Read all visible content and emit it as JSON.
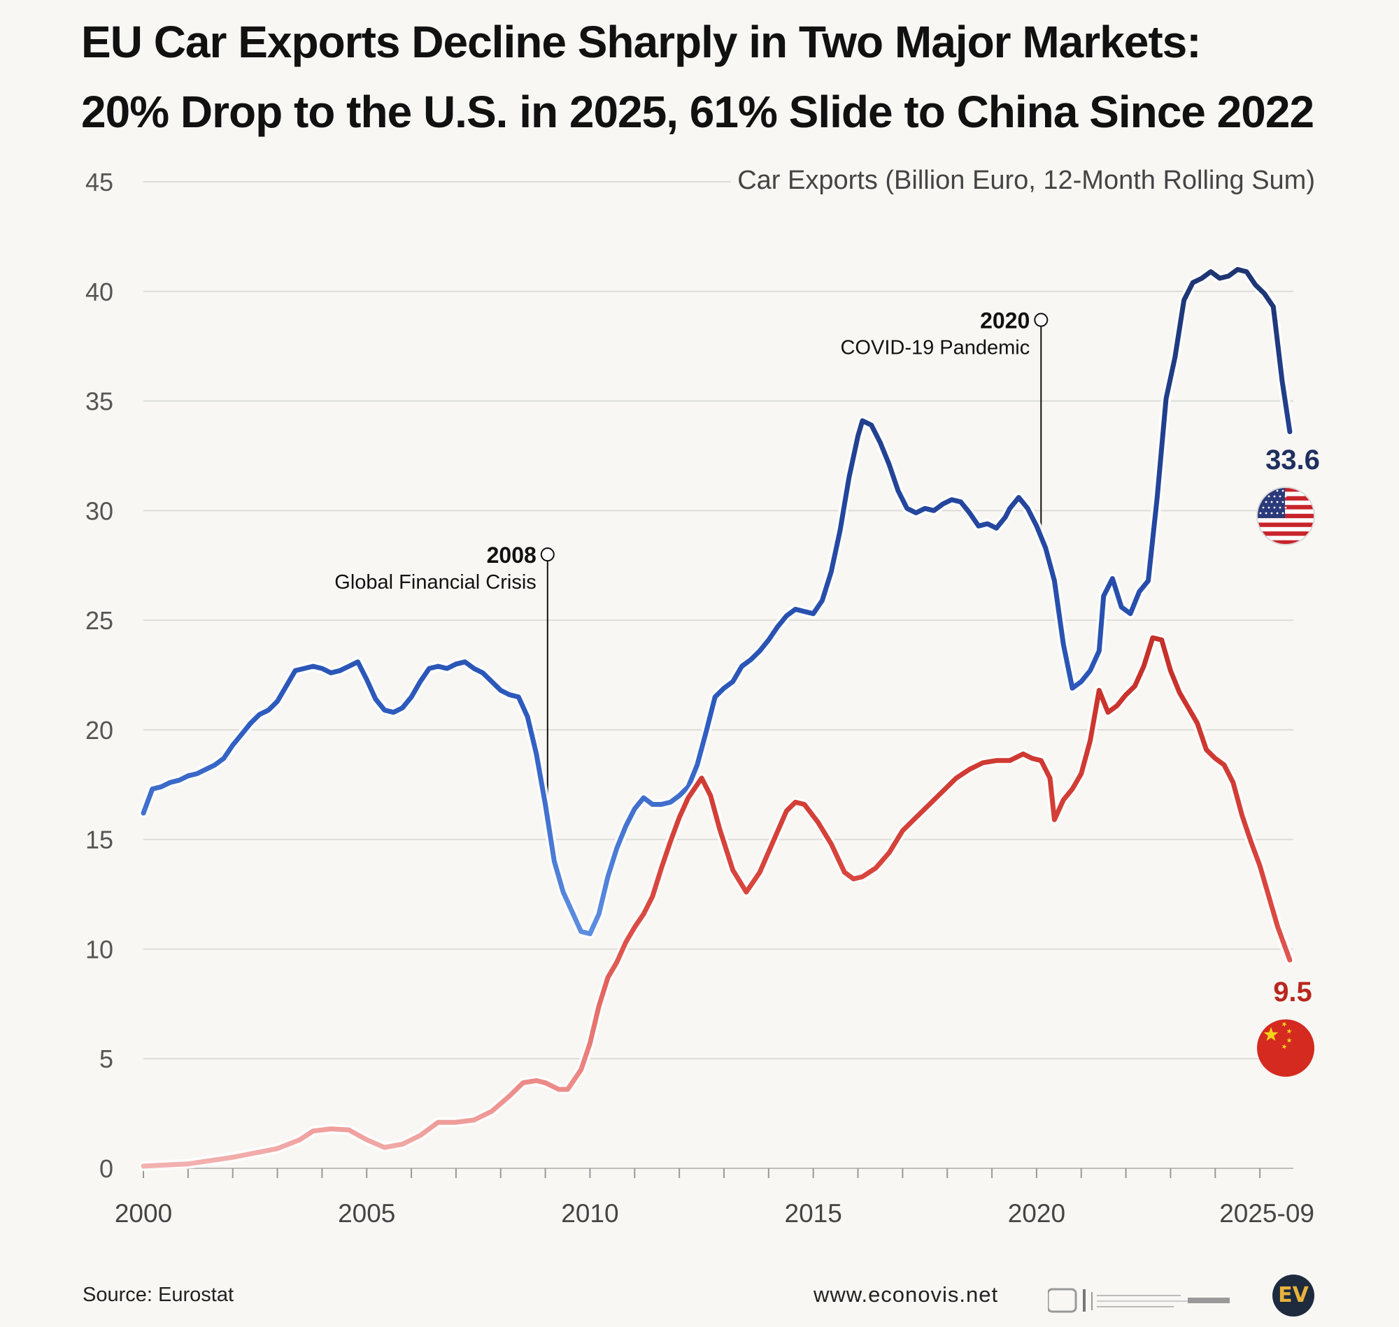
{
  "title": {
    "line1": "EU Car Exports Decline Sharply in Two Major Markets:",
    "line2": "20% Drop to the U.S. in 2025, 61% Slide to China Since 2022"
  },
  "chart_data": {
    "type": "line",
    "subtitle": "Car Exports (Billion Euro, 12-Month Rolling Sum)",
    "ylim": [
      0,
      45
    ],
    "xlim": [
      2000,
      2025.75
    ],
    "y_ticks": [
      "0",
      "5",
      "10",
      "15",
      "20",
      "25",
      "30",
      "35",
      "40",
      "45"
    ],
    "x_ticks": [
      {
        "value": 2000,
        "label": "2000"
      },
      {
        "value": 2005,
        "label": "2005"
      },
      {
        "value": 2010,
        "label": "2010"
      },
      {
        "value": 2015,
        "label": "2015"
      },
      {
        "value": 2020,
        "label": "2020"
      },
      {
        "value": 2025.67,
        "label": "2025-09"
      }
    ],
    "grid": true,
    "series": [
      {
        "name": "United States",
        "color": "#1f3f7e",
        "end_label": "33.6",
        "flag": "us-flag",
        "points": [
          [
            2000.0,
            16.2
          ],
          [
            2000.2,
            17.3
          ],
          [
            2000.4,
            17.4
          ],
          [
            2000.6,
            17.6
          ],
          [
            2000.8,
            17.7
          ],
          [
            2001.0,
            17.9
          ],
          [
            2001.2,
            18.0
          ],
          [
            2001.4,
            18.2
          ],
          [
            2001.6,
            18.4
          ],
          [
            2001.8,
            18.7
          ],
          [
            2002.0,
            19.3
          ],
          [
            2002.2,
            19.8
          ],
          [
            2002.4,
            20.3
          ],
          [
            2002.6,
            20.7
          ],
          [
            2002.8,
            20.9
          ],
          [
            2003.0,
            21.3
          ],
          [
            2003.2,
            22.0
          ],
          [
            2003.4,
            22.7
          ],
          [
            2003.6,
            22.8
          ],
          [
            2003.8,
            22.9
          ],
          [
            2004.0,
            22.8
          ],
          [
            2004.2,
            22.6
          ],
          [
            2004.4,
            22.7
          ],
          [
            2004.6,
            22.9
          ],
          [
            2004.8,
            23.1
          ],
          [
            2005.0,
            22.3
          ],
          [
            2005.2,
            21.4
          ],
          [
            2005.4,
            20.9
          ],
          [
            2005.6,
            20.8
          ],
          [
            2005.8,
            21.0
          ],
          [
            2006.0,
            21.5
          ],
          [
            2006.2,
            22.2
          ],
          [
            2006.4,
            22.8
          ],
          [
            2006.6,
            22.9
          ],
          [
            2006.8,
            22.8
          ],
          [
            2007.0,
            23.0
          ],
          [
            2007.2,
            23.1
          ],
          [
            2007.4,
            22.8
          ],
          [
            2007.6,
            22.6
          ],
          [
            2007.8,
            22.2
          ],
          [
            2008.0,
            21.8
          ],
          [
            2008.2,
            21.6
          ],
          [
            2008.4,
            21.5
          ],
          [
            2008.6,
            20.6
          ],
          [
            2008.8,
            18.9
          ],
          [
            2009.0,
            16.6
          ],
          [
            2009.2,
            14.0
          ],
          [
            2009.4,
            12.6
          ],
          [
            2009.6,
            11.7
          ],
          [
            2009.8,
            10.8
          ],
          [
            2010.0,
            10.7
          ],
          [
            2010.2,
            11.6
          ],
          [
            2010.4,
            13.3
          ],
          [
            2010.6,
            14.6
          ],
          [
            2010.8,
            15.6
          ],
          [
            2011.0,
            16.4
          ],
          [
            2011.2,
            16.9
          ],
          [
            2011.4,
            16.6
          ],
          [
            2011.6,
            16.6
          ],
          [
            2011.8,
            16.7
          ],
          [
            2012.0,
            17.0
          ],
          [
            2012.2,
            17.4
          ],
          [
            2012.4,
            18.4
          ],
          [
            2012.6,
            19.9
          ],
          [
            2012.8,
            21.5
          ],
          [
            2013.0,
            21.9
          ],
          [
            2013.2,
            22.2
          ],
          [
            2013.4,
            22.9
          ],
          [
            2013.6,
            23.2
          ],
          [
            2013.8,
            23.6
          ],
          [
            2014.0,
            24.1
          ],
          [
            2014.2,
            24.7
          ],
          [
            2014.4,
            25.2
          ],
          [
            2014.6,
            25.5
          ],
          [
            2014.8,
            25.4
          ],
          [
            2015.0,
            25.3
          ],
          [
            2015.2,
            25.9
          ],
          [
            2015.4,
            27.2
          ],
          [
            2015.6,
            29.1
          ],
          [
            2015.8,
            31.5
          ],
          [
            2016.0,
            33.4
          ],
          [
            2016.1,
            34.1
          ],
          [
            2016.3,
            33.9
          ],
          [
            2016.5,
            33.1
          ],
          [
            2016.7,
            32.1
          ],
          [
            2016.9,
            30.9
          ],
          [
            2017.1,
            30.1
          ],
          [
            2017.3,
            29.9
          ],
          [
            2017.5,
            30.1
          ],
          [
            2017.7,
            30.0
          ],
          [
            2017.9,
            30.3
          ],
          [
            2018.1,
            30.5
          ],
          [
            2018.3,
            30.4
          ],
          [
            2018.5,
            29.9
          ],
          [
            2018.7,
            29.3
          ],
          [
            2018.9,
            29.4
          ],
          [
            2019.1,
            29.2
          ],
          [
            2019.3,
            29.7
          ],
          [
            2019.4,
            30.1
          ],
          [
            2019.6,
            30.6
          ],
          [
            2019.8,
            30.1
          ],
          [
            2020.0,
            29.3
          ],
          [
            2020.2,
            28.3
          ],
          [
            2020.4,
            26.8
          ],
          [
            2020.6,
            23.9
          ],
          [
            2020.8,
            21.9
          ],
          [
            2021.0,
            22.2
          ],
          [
            2021.2,
            22.7
          ],
          [
            2021.4,
            23.6
          ],
          [
            2021.5,
            26.1
          ],
          [
            2021.7,
            26.9
          ],
          [
            2021.9,
            25.6
          ],
          [
            2022.1,
            25.3
          ],
          [
            2022.3,
            26.3
          ],
          [
            2022.5,
            26.8
          ],
          [
            2022.7,
            30.6
          ],
          [
            2022.9,
            35.1
          ],
          [
            2023.1,
            37.0
          ],
          [
            2023.3,
            39.6
          ],
          [
            2023.5,
            40.4
          ],
          [
            2023.7,
            40.6
          ],
          [
            2023.9,
            40.9
          ],
          [
            2024.1,
            40.6
          ],
          [
            2024.3,
            40.7
          ],
          [
            2024.5,
            41.0
          ],
          [
            2024.7,
            40.9
          ],
          [
            2024.9,
            40.3
          ],
          [
            2025.1,
            39.9
          ],
          [
            2025.3,
            39.3
          ],
          [
            2025.5,
            35.9
          ],
          [
            2025.67,
            33.6
          ]
        ]
      },
      {
        "name": "China",
        "color": "#c8322a",
        "end_label": "9.5",
        "flag": "china-flag",
        "points": [
          [
            2000.0,
            0.1
          ],
          [
            2000.5,
            0.15
          ],
          [
            2001.0,
            0.2
          ],
          [
            2001.5,
            0.35
          ],
          [
            2002.0,
            0.5
          ],
          [
            2002.5,
            0.7
          ],
          [
            2003.0,
            0.9
          ],
          [
            2003.5,
            1.3
          ],
          [
            2003.8,
            1.7
          ],
          [
            2004.2,
            1.8
          ],
          [
            2004.6,
            1.75
          ],
          [
            2005.0,
            1.3
          ],
          [
            2005.4,
            0.95
          ],
          [
            2005.8,
            1.1
          ],
          [
            2006.2,
            1.5
          ],
          [
            2006.6,
            2.1
          ],
          [
            2007.0,
            2.1
          ],
          [
            2007.4,
            2.2
          ],
          [
            2007.8,
            2.6
          ],
          [
            2008.2,
            3.3
          ],
          [
            2008.5,
            3.9
          ],
          [
            2008.8,
            4.0
          ],
          [
            2009.0,
            3.9
          ],
          [
            2009.3,
            3.6
          ],
          [
            2009.5,
            3.6
          ],
          [
            2009.8,
            4.5
          ],
          [
            2010.0,
            5.7
          ],
          [
            2010.2,
            7.4
          ],
          [
            2010.4,
            8.7
          ],
          [
            2010.6,
            9.4
          ],
          [
            2010.8,
            10.3
          ],
          [
            2011.0,
            11.0
          ],
          [
            2011.2,
            11.6
          ],
          [
            2011.4,
            12.4
          ],
          [
            2011.6,
            13.7
          ],
          [
            2011.8,
            14.9
          ],
          [
            2012.0,
            16.0
          ],
          [
            2012.2,
            16.9
          ],
          [
            2012.5,
            17.8
          ],
          [
            2012.7,
            17.0
          ],
          [
            2012.9,
            15.5
          ],
          [
            2013.2,
            13.6
          ],
          [
            2013.5,
            12.6
          ],
          [
            2013.8,
            13.5
          ],
          [
            2014.1,
            14.9
          ],
          [
            2014.4,
            16.3
          ],
          [
            2014.6,
            16.7
          ],
          [
            2014.8,
            16.6
          ],
          [
            2015.1,
            15.8
          ],
          [
            2015.4,
            14.8
          ],
          [
            2015.7,
            13.5
          ],
          [
            2015.9,
            13.2
          ],
          [
            2016.1,
            13.3
          ],
          [
            2016.4,
            13.7
          ],
          [
            2016.7,
            14.4
          ],
          [
            2017.0,
            15.4
          ],
          [
            2017.3,
            16.0
          ],
          [
            2017.6,
            16.6
          ],
          [
            2017.9,
            17.2
          ],
          [
            2018.2,
            17.8
          ],
          [
            2018.5,
            18.2
          ],
          [
            2018.8,
            18.5
          ],
          [
            2019.1,
            18.6
          ],
          [
            2019.4,
            18.6
          ],
          [
            2019.7,
            18.9
          ],
          [
            2019.9,
            18.7
          ],
          [
            2020.1,
            18.6
          ],
          [
            2020.3,
            17.8
          ],
          [
            2020.4,
            15.9
          ],
          [
            2020.6,
            16.8
          ],
          [
            2020.8,
            17.3
          ],
          [
            2021.0,
            18.0
          ],
          [
            2021.2,
            19.5
          ],
          [
            2021.4,
            21.8
          ],
          [
            2021.6,
            20.8
          ],
          [
            2021.8,
            21.1
          ],
          [
            2022.0,
            21.6
          ],
          [
            2022.2,
            22.0
          ],
          [
            2022.4,
            22.9
          ],
          [
            2022.6,
            24.2
          ],
          [
            2022.8,
            24.1
          ],
          [
            2023.0,
            22.7
          ],
          [
            2023.2,
            21.7
          ],
          [
            2023.4,
            21.0
          ],
          [
            2023.6,
            20.3
          ],
          [
            2023.8,
            19.1
          ],
          [
            2024.0,
            18.7
          ],
          [
            2024.2,
            18.4
          ],
          [
            2024.4,
            17.6
          ],
          [
            2024.6,
            16.1
          ],
          [
            2024.8,
            14.9
          ],
          [
            2025.0,
            13.8
          ],
          [
            2025.2,
            12.4
          ],
          [
            2025.4,
            11.0
          ],
          [
            2025.67,
            9.5
          ]
        ]
      }
    ],
    "annotations": [
      {
        "year_label": "2008",
        "text": "Global Financial Crisis",
        "x": 2009.05,
        "y": 28.0,
        "series_y": 17.0
      },
      {
        "year_label": "2020",
        "text": "COVID-19 Pandemic",
        "x": 2020.1,
        "y": 38.7,
        "series_y": 28.5
      }
    ]
  },
  "footer": {
    "source": "Source: Eurostat",
    "website": "www.econovis.net",
    "logo_text": "EV"
  }
}
